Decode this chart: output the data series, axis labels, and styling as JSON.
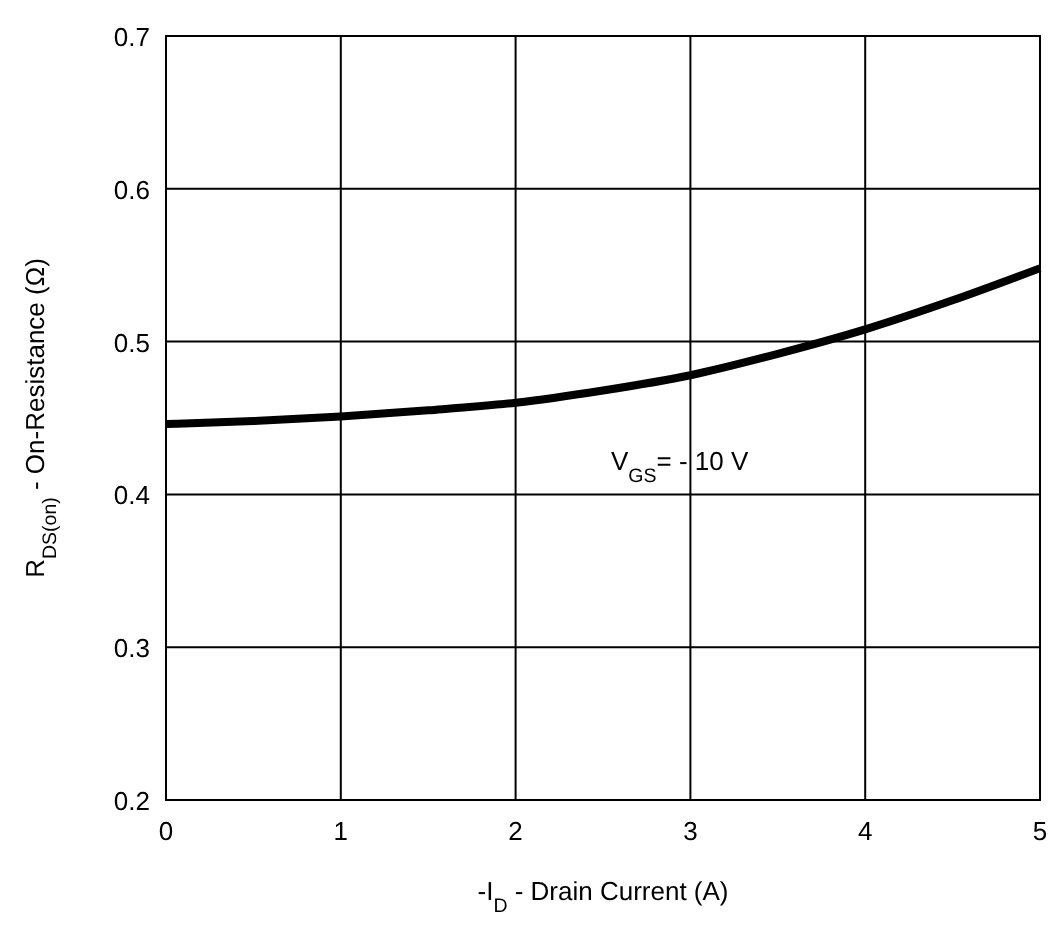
{
  "chart_data": {
    "type": "line",
    "xlabel": "-I$_{D}$ - Drain Current (A)",
    "ylabel": "R$_{DS(on)}$ - On-Resistance (Ω)",
    "x": [
      0,
      0.5,
      1,
      1.5,
      2,
      2.5,
      3,
      3.5,
      4,
      4.5,
      5
    ],
    "series": [
      {
        "name": "V$_{GS}$= - 10 V",
        "color": "#000000",
        "values": [
          0.446,
          0.448,
          0.451,
          0.455,
          0.46,
          0.468,
          0.478,
          0.492,
          0.508,
          0.527,
          0.548
        ]
      }
    ],
    "xlim": [
      0,
      5
    ],
    "ylim": [
      0.2,
      0.7
    ],
    "xticks": [
      0,
      1,
      2,
      3,
      4,
      5
    ],
    "yticks": [
      {
        "value": 0.2,
        "label": "0.2"
      },
      {
        "value": 0.3,
        "label": "0.3"
      },
      {
        "value": 0.4,
        "label": "0.4"
      },
      {
        "value": 0.5,
        "label": "0.5"
      },
      {
        "value": 0.6,
        "label": "0.6"
      },
      {
        "value": 0.7,
        "label": "0.7"
      }
    ],
    "grid": true,
    "marker": "none",
    "line_style": "solid"
  }
}
